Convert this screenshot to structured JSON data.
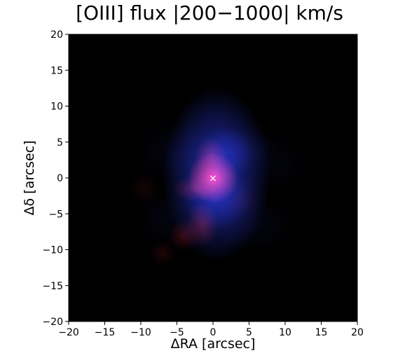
{
  "chart_data": {
    "type": "heatmap",
    "title": "[OIII] flux |200−1000| km/s",
    "xlabel": "ΔRA [arcsec]",
    "ylabel": "Δδ [arcsec]",
    "xlim": [
      -20,
      20
    ],
    "ylim": [
      -20,
      20
    ],
    "xticks": [
      -20,
      -15,
      -10,
      -5,
      0,
      5,
      10,
      15,
      20
    ],
    "yticks": [
      -20,
      -15,
      -10,
      -5,
      0,
      5,
      10,
      15,
      20
    ],
    "xtick_labels": [
      "−20",
      "−15",
      "−10",
      "−5",
      "0",
      "5",
      "10",
      "15",
      "20"
    ],
    "ytick_labels": [
      "−20",
      "−15",
      "−10",
      "−5",
      "0",
      "5",
      "10",
      "15",
      "20"
    ],
    "background_color": "#000000",
    "grid": false,
    "channels": [
      {
        "color": "#ff2a3c",
        "blobs": [
          {
            "x": 0.0,
            "y": 0.0,
            "sx": 1.6,
            "sy": 1.6,
            "a": 1.0
          },
          {
            "x": -0.3,
            "y": 3.0,
            "sx": 1.0,
            "sy": 1.2,
            "a": 0.35
          },
          {
            "x": -2.5,
            "y": -1.5,
            "sx": 1.4,
            "sy": 0.8,
            "a": 0.28
          },
          {
            "x": -1.5,
            "y": -6.5,
            "sx": 1.0,
            "sy": 1.4,
            "a": 0.28
          },
          {
            "x": -4.0,
            "y": -8.0,
            "sx": 1.0,
            "sy": 1.0,
            "a": 0.22
          },
          {
            "x": -7.0,
            "y": -10.5,
            "sx": 0.8,
            "sy": 0.8,
            "a": 0.12
          },
          {
            "x": -9.5,
            "y": -1.5,
            "sx": 1.0,
            "sy": 1.0,
            "a": 0.08
          },
          {
            "x": 4.0,
            "y": -3.0,
            "sx": 1.2,
            "sy": 1.2,
            "a": 0.06
          }
        ]
      },
      {
        "color": "#3040ff",
        "blobs": [
          {
            "x": 0.5,
            "y": 0.5,
            "sx": 3.4,
            "sy": 5.5,
            "a": 0.75
          },
          {
            "x": 2.0,
            "y": 3.5,
            "sx": 1.6,
            "sy": 1.6,
            "a": 0.32
          },
          {
            "x": 0.5,
            "y": -2.8,
            "sx": 2.2,
            "sy": 2.0,
            "a": 0.4
          },
          {
            "x": 4.5,
            "y": 4.0,
            "sx": 2.2,
            "sy": 1.6,
            "a": 0.1
          },
          {
            "x": 6.0,
            "y": -6.5,
            "sx": 2.5,
            "sy": 2.0,
            "a": 0.07
          },
          {
            "x": -5.5,
            "y": 3.5,
            "sx": 2.5,
            "sy": 2.0,
            "a": 0.07
          },
          {
            "x": -6.5,
            "y": -5.5,
            "sx": 2.0,
            "sy": 2.0,
            "a": 0.06
          },
          {
            "x": 9.0,
            "y": 2.0,
            "sx": 1.8,
            "sy": 1.8,
            "a": 0.05
          }
        ]
      }
    ],
    "marker": {
      "x": 0,
      "y": 0,
      "symbol": "×",
      "color": "#ffffff"
    }
  }
}
